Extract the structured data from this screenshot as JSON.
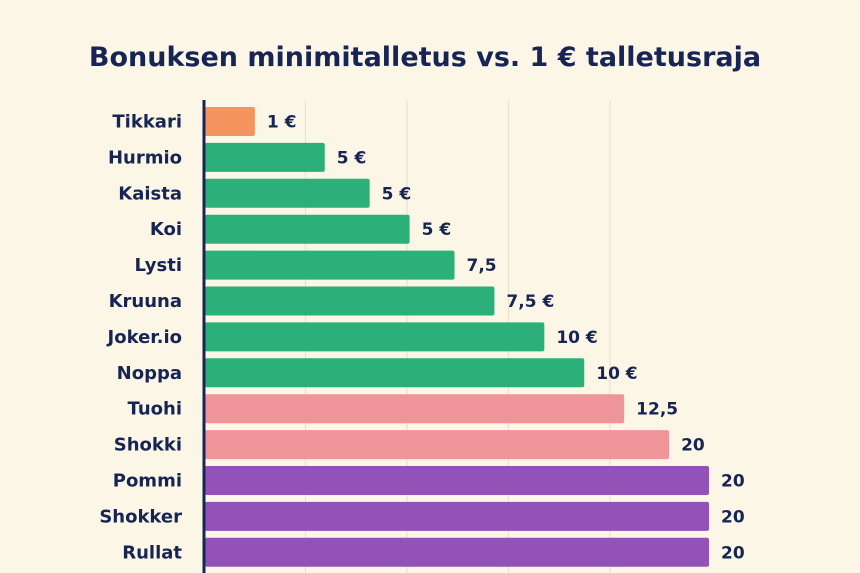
{
  "chart_data": {
    "type": "bar",
    "orientation": "horizontal",
    "title": "Bonuksen minimitalletus vs. 1 € talletusraja",
    "xlabel": "",
    "ylabel": "",
    "xlim": [
      0,
      20
    ],
    "grid": true,
    "categories": [
      "Tikkari",
      "Hurmio",
      "Kaista",
      "Koi",
      "Lysti",
      "Kruuna",
      "Joker.io",
      "Noppa",
      "Tuohi",
      "Shokki",
      "Pommi",
      "Shokker",
      "Rullat"
    ],
    "values": [
      1,
      5,
      5,
      5,
      7.5,
      7.5,
      10,
      10,
      12.5,
      20,
      20,
      20,
      20
    ],
    "bar_values": [
      1,
      2.4,
      3.3,
      4.1,
      5,
      5.8,
      6.8,
      7.6,
      8.4,
      9.3,
      10.1,
      10.1,
      10.1
    ],
    "data_labels": [
      "1 €",
      "5 €",
      "5 €",
      "5 €",
      "7,5",
      "7,5 €",
      "10 €",
      "10 €",
      "12,5",
      "20",
      "20",
      "20",
      "20"
    ],
    "bar_colors": [
      "#f4955f",
      "#2bb07a",
      "#2bb07a",
      "#2bb07a",
      "#2bb07a",
      "#2bb07a",
      "#2bb07a",
      "#2bb07a",
      "#ef9599",
      "#ef9599",
      "#9352b8",
      "#9352b8",
      "#9352b8"
    ],
    "colors": {
      "background": "#fbf6e6",
      "text": "#172554",
      "axis": "#172554",
      "grid": "#e9e2cd"
    }
  }
}
